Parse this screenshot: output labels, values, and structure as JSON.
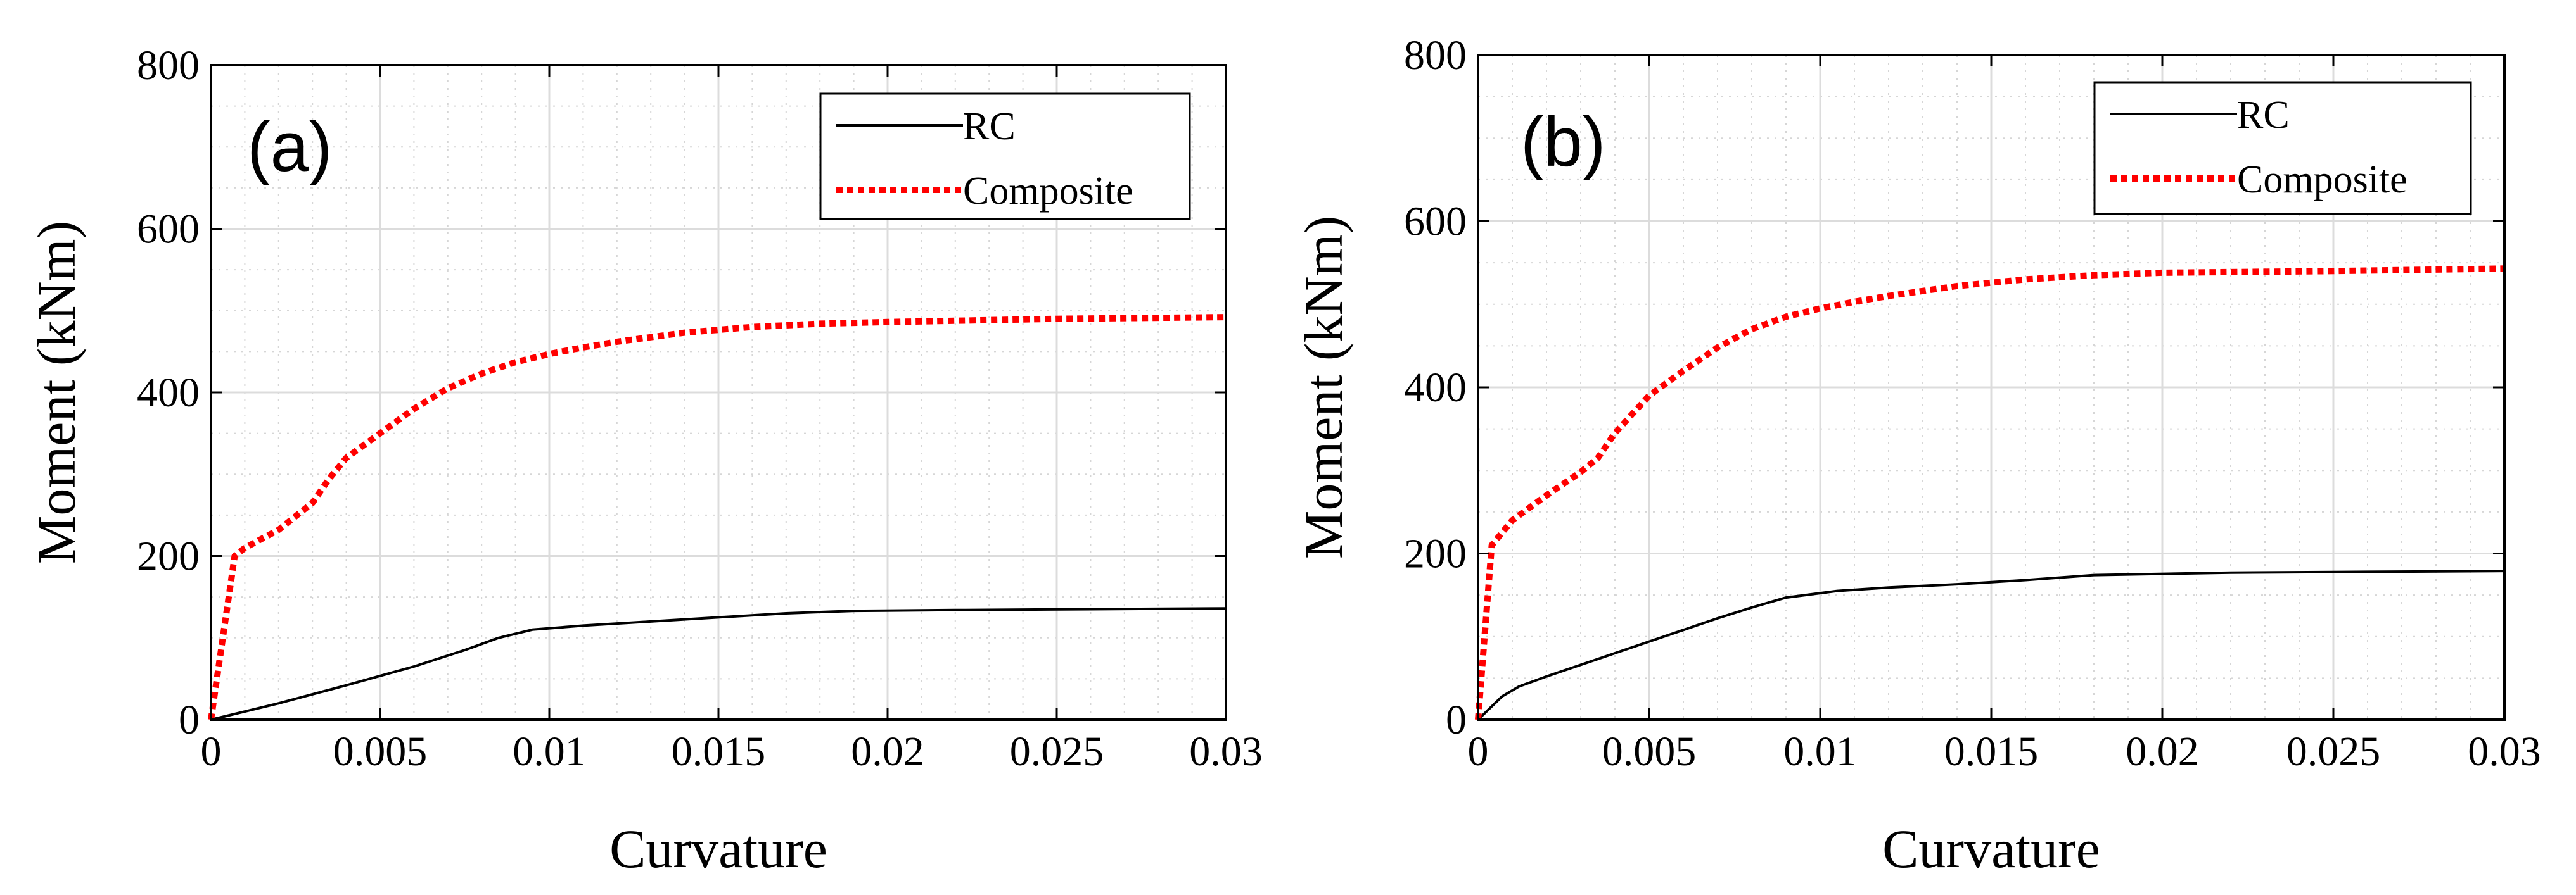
{
  "chart_data": [
    {
      "type": "line",
      "panel_label": "(a)",
      "xlabel": "Curvature",
      "ylabel": "Moment (kNm)",
      "xlim": [
        0,
        0.03
      ],
      "ylim": [
        0,
        800
      ],
      "xticks": [
        0,
        0.005,
        0.01,
        0.015,
        0.02,
        0.025,
        0.03
      ],
      "xtick_labels": [
        "0",
        "0.005",
        "0.01",
        "0.015",
        "0.02",
        "0.025",
        "0.03"
      ],
      "yticks": [
        0,
        200,
        400,
        600,
        800
      ],
      "ytick_labels": [
        "0",
        "200",
        "400",
        "600",
        "800"
      ],
      "grid": true,
      "minor_grid": true,
      "legend_position": "top-right",
      "series": [
        {
          "name": "RC",
          "color": "#000000",
          "style": "solid",
          "x": [
            0,
            0.002,
            0.004,
            0.006,
            0.0075,
            0.0085,
            0.0095,
            0.011,
            0.013,
            0.015,
            0.017,
            0.019,
            0.022,
            0.026,
            0.03
          ],
          "y": [
            0,
            20,
            42,
            65,
            85,
            100,
            110,
            115,
            120,
            125,
            130,
            133,
            134,
            135,
            136
          ]
        },
        {
          "name": "Composite",
          "color": "#ff0000",
          "style": "dotted",
          "x": [
            0,
            0.0007,
            0.001,
            0.002,
            0.003,
            0.0035,
            0.004,
            0.005,
            0.006,
            0.007,
            0.008,
            0.009,
            0.01,
            0.011,
            0.012,
            0.014,
            0.016,
            0.018,
            0.02,
            0.025,
            0.03
          ],
          "y": [
            0,
            200,
            210,
            232,
            265,
            295,
            320,
            350,
            380,
            405,
            423,
            437,
            447,
            455,
            462,
            473,
            480,
            484,
            486,
            490,
            492
          ]
        }
      ]
    },
    {
      "type": "line",
      "panel_label": "(b)",
      "xlabel": "Curvature",
      "ylabel": "Moment (kNm)",
      "xlim": [
        0,
        0.03
      ],
      "ylim": [
        0,
        800
      ],
      "xticks": [
        0,
        0.005,
        0.01,
        0.015,
        0.02,
        0.025,
        0.03
      ],
      "xtick_labels": [
        "0",
        "0.005",
        "0.01",
        "0.015",
        "0.02",
        "0.025",
        "0.03"
      ],
      "yticks": [
        0,
        200,
        400,
        600,
        800
      ],
      "ytick_labels": [
        "0",
        "200",
        "400",
        "600",
        "800"
      ],
      "grid": true,
      "minor_grid": true,
      "legend_position": "top-right",
      "series": [
        {
          "name": "RC",
          "color": "#000000",
          "style": "solid",
          "x": [
            0,
            0.0007,
            0.0012,
            0.002,
            0.003,
            0.004,
            0.005,
            0.006,
            0.007,
            0.008,
            0.009,
            0.0105,
            0.012,
            0.014,
            0.016,
            0.018,
            0.022,
            0.026,
            0.03
          ],
          "y": [
            0,
            28,
            40,
            52,
            66,
            80,
            94,
            108,
            122,
            135,
            147,
            155,
            159,
            163,
            168,
            174,
            177,
            178,
            179
          ]
        },
        {
          "name": "Composite",
          "color": "#ff0000",
          "style": "dotted",
          "x": [
            0,
            0.0004,
            0.001,
            0.002,
            0.003,
            0.0035,
            0.004,
            0.005,
            0.006,
            0.007,
            0.008,
            0.009,
            0.01,
            0.011,
            0.012,
            0.014,
            0.016,
            0.018,
            0.02,
            0.025,
            0.03
          ],
          "y": [
            0,
            210,
            240,
            270,
            298,
            315,
            345,
            390,
            420,
            448,
            470,
            485,
            495,
            503,
            510,
            522,
            530,
            535,
            538,
            540,
            543
          ]
        }
      ]
    }
  ]
}
